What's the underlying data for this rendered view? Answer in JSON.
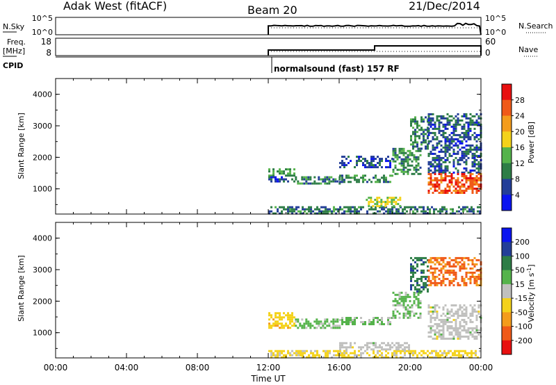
{
  "header": {
    "station": "Adak West (fitACF)",
    "beam": "Beam 20",
    "date": "21/Dec/2014"
  },
  "nsky_panel": {
    "left_label": "N.Sky",
    "right_label": "N.Search",
    "left_ticks": [
      "10^5",
      "10^0"
    ],
    "right_ticks": [
      "10^5",
      "10^0"
    ]
  },
  "freq_panel": {
    "left_label_1": "Freq.",
    "left_label_2": "[MHz]",
    "right_label": "Nave",
    "left_ticks": [
      "18",
      "8"
    ],
    "right_ticks": [
      "60",
      "0"
    ]
  },
  "cpid": {
    "label": "CPID",
    "program": "normalsound (fast) 157 RF"
  },
  "colors": {
    "power_scale": [
      "#0a14f0",
      "#233e98",
      "#2d7d46",
      "#55b34b",
      "#f4d21a",
      "#f49c1c",
      "#f05a18",
      "#e81010"
    ],
    "velocity_scale": [
      "#e81010",
      "#f05a18",
      "#f49c1c",
      "#f4d21a",
      "#c0c0be",
      "#55b34b",
      "#2d7d46",
      "#233e98",
      "#0a14f0"
    ]
  },
  "chart_data": [
    {
      "type": "heatmap",
      "name": "power",
      "title": "",
      "xlabel": "",
      "ylabel": "Slant Range [km]",
      "x_ticks": [
        "00:00",
        "04:00",
        "08:00",
        "12:00",
        "16:00",
        "20:00",
        "00:00"
      ],
      "y_ticks": [
        1000,
        2000,
        3000,
        4000
      ],
      "ylim": [
        200,
        4500
      ],
      "xlim_hours": [
        0,
        24
      ],
      "colorbar": {
        "label": "Power [dB]",
        "ticks": [
          4,
          8,
          12,
          16,
          20,
          24,
          28
        ],
        "range": [
          0,
          32
        ]
      },
      "regions": [
        {
          "t": [
            12.0,
            13.5
          ],
          "r": [
            1400,
            1650
          ],
          "v": 12
        },
        {
          "t": [
            12.0,
            13.5
          ],
          "r": [
            1250,
            1400
          ],
          "v": 6
        },
        {
          "t": [
            13.5,
            16.0
          ],
          "r": [
            1150,
            1400
          ],
          "v": 10
        },
        {
          "t": [
            16.0,
            19.0
          ],
          "r": [
            1250,
            1450
          ],
          "v": 10
        },
        {
          "t": [
            16.0,
            19.0
          ],
          "r": [
            1700,
            2050
          ],
          "v": 6
        },
        {
          "t": [
            19.0,
            20.6
          ],
          "r": [
            1500,
            2300
          ],
          "v": 11
        },
        {
          "t": [
            20.0,
            21.0
          ],
          "r": [
            2300,
            3300
          ],
          "v": 10
        },
        {
          "t": [
            21.0,
            24.0
          ],
          "r": [
            1500,
            3400
          ],
          "v": 7
        },
        {
          "t": [
            21.0,
            24.0
          ],
          "r": [
            900,
            1500
          ],
          "v": 27
        },
        {
          "t": [
            12.0,
            24.0
          ],
          "r": [
            250,
            450
          ],
          "v": 9
        },
        {
          "t": [
            17.5,
            19.5
          ],
          "r": [
            450,
            750
          ],
          "v": 16
        }
      ]
    },
    {
      "type": "heatmap",
      "name": "velocity",
      "title": "",
      "xlabel": "Time UT",
      "ylabel": "Slant Range [km]",
      "x_ticks": [
        "00:00",
        "04:00",
        "08:00",
        "12:00",
        "16:00",
        "20:00",
        "00:00"
      ],
      "y_ticks": [
        1000,
        2000,
        3000,
        4000
      ],
      "ylim": [
        200,
        4500
      ],
      "xlim_hours": [
        0,
        24
      ],
      "colorbar": {
        "label": "Velocity [m s^-1]",
        "ticks": [
          "200",
          "100",
          "50",
          "15",
          "-15",
          "-50",
          "-100",
          "-200"
        ],
        "range": [
          -250,
          250
        ]
      },
      "regions": [
        {
          "t": [
            12.0,
            13.5
          ],
          "r": [
            1150,
            1650
          ],
          "v": -60
        },
        {
          "t": [
            13.5,
            16.0
          ],
          "r": [
            1150,
            1450
          ],
          "v": 40
        },
        {
          "t": [
            16.0,
            19.0
          ],
          "r": [
            1250,
            1500
          ],
          "v": 40
        },
        {
          "t": [
            19.0,
            20.6
          ],
          "r": [
            1500,
            2300
          ],
          "v": 45
        },
        {
          "t": [
            20.0,
            21.0
          ],
          "r": [
            2300,
            3400
          ],
          "v": 120
        },
        {
          "t": [
            21.0,
            24.0
          ],
          "r": [
            800,
            1900
          ],
          "v": 0
        },
        {
          "t": [
            21.0,
            24.0
          ],
          "r": [
            2500,
            3400
          ],
          "v": -150
        },
        {
          "t": [
            12.0,
            24.0
          ],
          "r": [
            250,
            450
          ],
          "v": -40
        },
        {
          "t": [
            16.0,
            20.0
          ],
          "r": [
            450,
            700
          ],
          "v": 0
        }
      ]
    }
  ]
}
